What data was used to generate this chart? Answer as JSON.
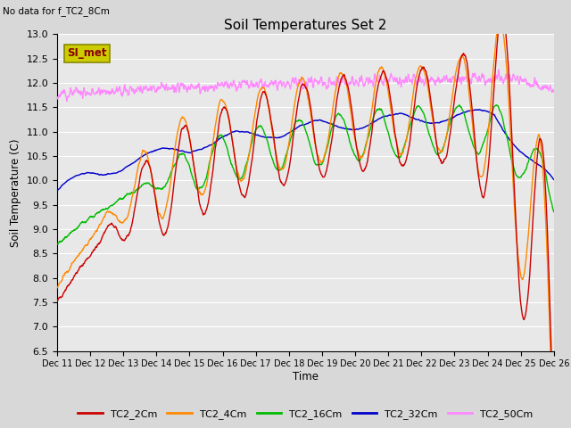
{
  "title": "Soil Temperatures Set 2",
  "subtitle": "No data for f_TC2_8Cm",
  "xlabel": "Time",
  "ylabel": "Soil Temperature (C)",
  "ylim": [
    6.5,
    13.0
  ],
  "yticks": [
    6.5,
    7.0,
    7.5,
    8.0,
    8.5,
    9.0,
    9.5,
    10.0,
    10.5,
    11.0,
    11.5,
    12.0,
    12.5,
    13.0
  ],
  "xtick_labels": [
    "Dec 11",
    "Dec 12",
    "Dec 13",
    "Dec 14",
    "Dec 15",
    "Dec 16",
    "Dec 17",
    "Dec 18",
    "Dec 19",
    "Dec 20",
    "Dec 21",
    "Dec 22",
    "Dec 23",
    "Dec 24",
    "Dec 25",
    "Dec 26"
  ],
  "legend_labels": [
    "TC2_2Cm",
    "TC2_4Cm",
    "TC2_16Cm",
    "TC2_32Cm",
    "TC2_50Cm"
  ],
  "line_colors": [
    "#cc0000",
    "#ff8800",
    "#00bb00",
    "#0000cc",
    "#ff88ff"
  ],
  "bg_color": "#e8e8e8",
  "plot_bg_color": "#e8e8e8",
  "si_met_box_color": "#cccc00",
  "si_met_text_color": "#880000",
  "grid_color": "#ffffff",
  "annotation": "SI_met"
}
